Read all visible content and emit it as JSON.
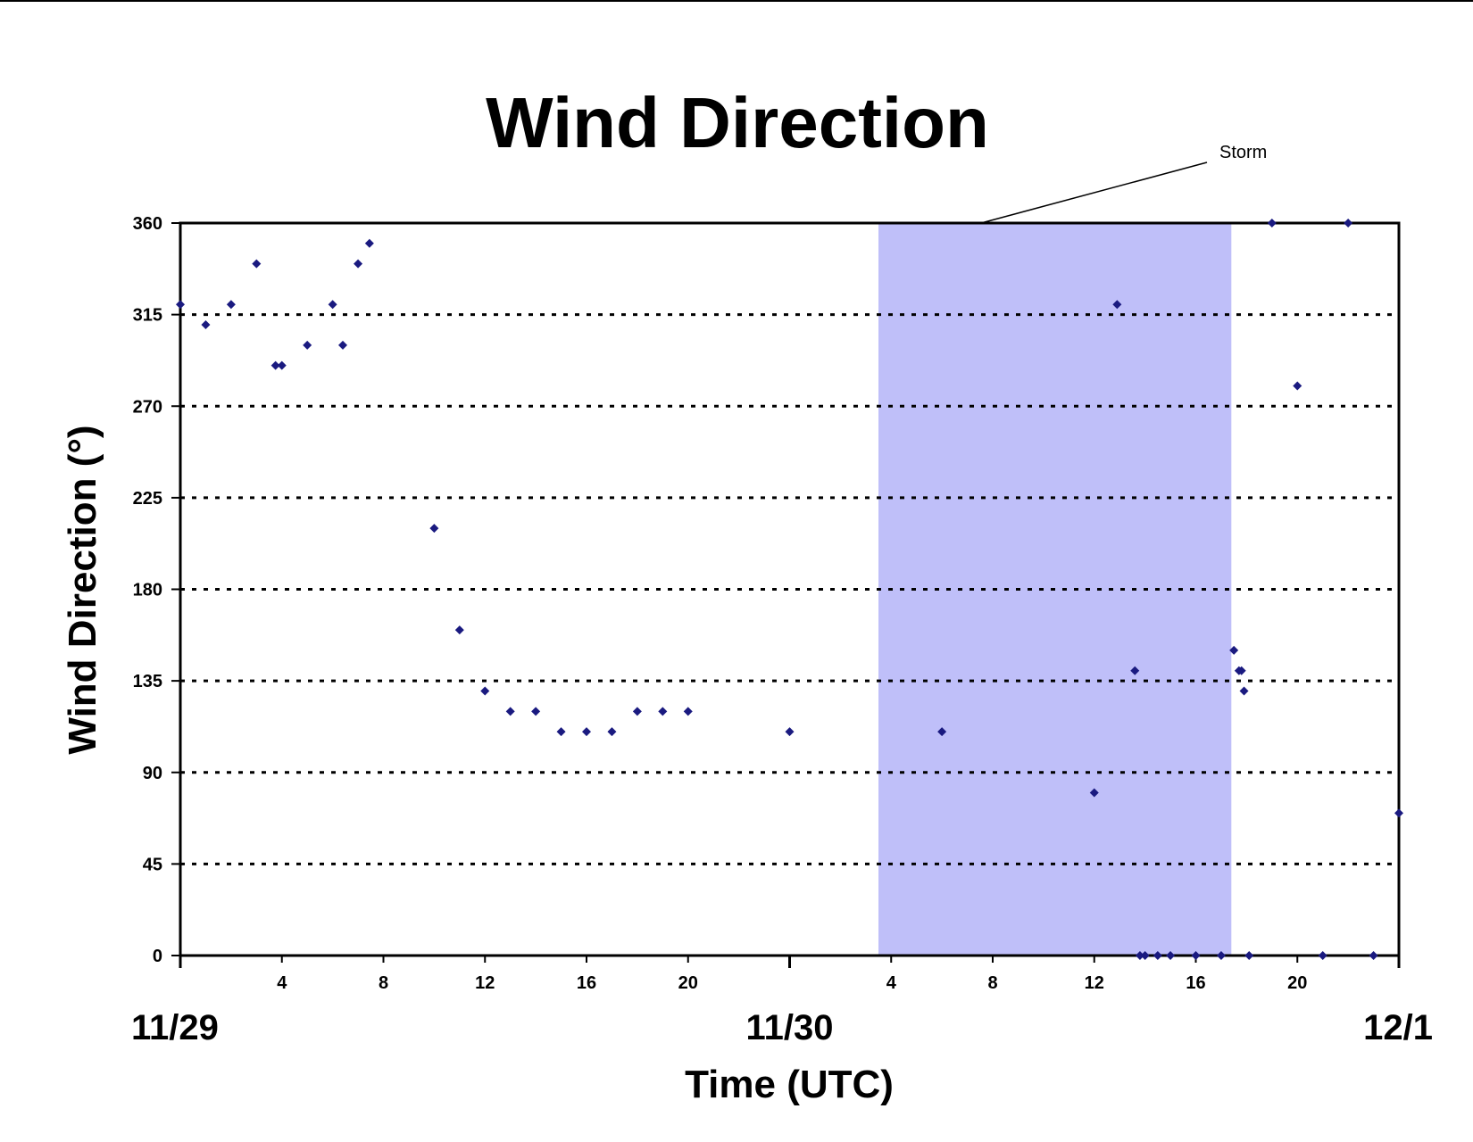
{
  "chart_data": {
    "type": "scatter",
    "title": "Wind Direction",
    "xlabel": "Time (UTC)",
    "ylabel": "Wind Direction (°)",
    "ylim": [
      0,
      360
    ],
    "yticks": [
      0,
      45,
      90,
      135,
      180,
      225,
      270,
      315,
      360
    ],
    "xlim_hours": [
      0,
      48
    ],
    "x_unit": "hours from 11/29 00 UTC",
    "hour_ticks": [
      {
        "x": 4,
        "label": "4"
      },
      {
        "x": 8,
        "label": "8"
      },
      {
        "x": 12,
        "label": "12"
      },
      {
        "x": 16,
        "label": "16"
      },
      {
        "x": 20,
        "label": "20"
      },
      {
        "x": 28,
        "label": "4"
      },
      {
        "x": 32,
        "label": "8"
      },
      {
        "x": 36,
        "label": "12"
      },
      {
        "x": 40,
        "label": "16"
      },
      {
        "x": 44,
        "label": "20"
      }
    ],
    "date_labels": [
      {
        "x": 0,
        "label": "11/29"
      },
      {
        "x": 24,
        "label": "11/30"
      },
      {
        "x": 48,
        "label": "12/1"
      }
    ],
    "grid": "dashed horizontal at y ticks",
    "marker_color": "#1a1a80",
    "storm_shade_color": "#bfbff9",
    "annotation": {
      "text": "Storm",
      "x_start": 27.5,
      "x_end": 41.4
    },
    "series": [
      {
        "points": [
          [
            0,
            320
          ],
          [
            1,
            310
          ],
          [
            2,
            320
          ],
          [
            3,
            340
          ],
          [
            3.75,
            290
          ],
          [
            4,
            290
          ],
          [
            5,
            300
          ],
          [
            6,
            320
          ],
          [
            6.4,
            300
          ],
          [
            7,
            340
          ],
          [
            7.45,
            350
          ],
          [
            10,
            210
          ],
          [
            11,
            160
          ],
          [
            12,
            130
          ],
          [
            13,
            120
          ],
          [
            14,
            120
          ],
          [
            15,
            110
          ],
          [
            16,
            110
          ],
          [
            17,
            110
          ],
          [
            18,
            120
          ],
          [
            19,
            120
          ],
          [
            20,
            120
          ],
          [
            24,
            110
          ],
          [
            30,
            110
          ],
          [
            36,
            80
          ],
          [
            36.9,
            320
          ],
          [
            37.6,
            140
          ],
          [
            37.8,
            0
          ],
          [
            38,
            0
          ],
          [
            38.5,
            0
          ],
          [
            39,
            0
          ],
          [
            40,
            0
          ],
          [
            41,
            0
          ],
          [
            41.5,
            150
          ],
          [
            41.7,
            140
          ],
          [
            41.8,
            140
          ],
          [
            41.9,
            130
          ],
          [
            42.1,
            0
          ],
          [
            43,
            360
          ],
          [
            44,
            280
          ],
          [
            45,
            0
          ],
          [
            46,
            360
          ],
          [
            47,
            0
          ],
          [
            48,
            70
          ]
        ]
      }
    ]
  }
}
